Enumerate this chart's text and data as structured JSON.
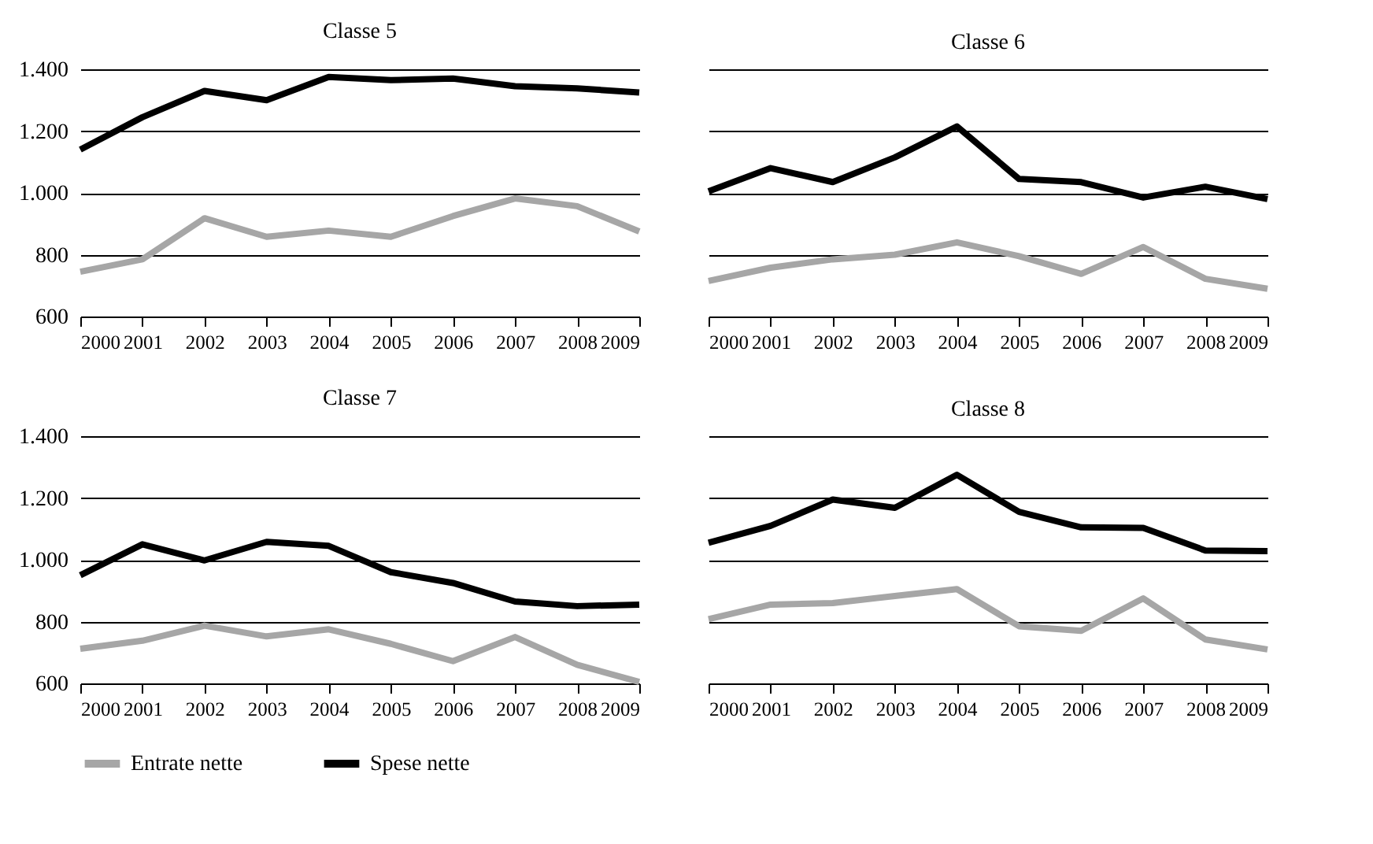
{
  "chart_data": [
    {
      "type": "line",
      "title": "Classe 5",
      "categories": [
        "2000",
        "2001",
        "2002",
        "2003",
        "2004",
        "2005",
        "2006",
        "2007",
        "2008",
        "2009"
      ],
      "ylim": [
        600,
        1400
      ],
      "yticks": [
        {
          "value": 600,
          "label": "600"
        },
        {
          "value": 800,
          "label": "800"
        },
        {
          "value": 1000,
          "label": "1.000"
        },
        {
          "value": 1200,
          "label": "1.200"
        },
        {
          "value": 1400,
          "label": "1.400"
        }
      ],
      "grid": "y",
      "legend": "bottom",
      "series": [
        {
          "name": "Entrate nette",
          "color": "#a6a6a6",
          "values": [
            745,
            785,
            918,
            858,
            878,
            858,
            925,
            982,
            957,
            875
          ]
        },
        {
          "name": "Spese nette",
          "color": "#000000",
          "values": [
            1140,
            1245,
            1330,
            1300,
            1375,
            1365,
            1370,
            1345,
            1338,
            1325
          ]
        }
      ]
    },
    {
      "type": "line",
      "title": "Classe 6",
      "categories": [
        "2000",
        "2001",
        "2002",
        "2003",
        "2004",
        "2005",
        "2006",
        "2007",
        "2008",
        "2009"
      ],
      "ylim": [
        600,
        1400
      ],
      "yticks": [
        600,
        800,
        1000,
        1200,
        1400
      ],
      "tick_labels": "x",
      "grid": "y",
      "legend": "bottom",
      "series": [
        {
          "name": "Entrate nette",
          "color": "#a6a6a6",
          "values": [
            715,
            758,
            785,
            800,
            840,
            795,
            738,
            825,
            722,
            690
          ]
        },
        {
          "name": "Spese nette",
          "color": "#000000",
          "values": [
            1005,
            1080,
            1035,
            1115,
            1215,
            1045,
            1035,
            985,
            1020,
            980
          ]
        }
      ]
    },
    {
      "type": "line",
      "title": "Classe 7",
      "categories": [
        "2000",
        "2001",
        "2002",
        "2003",
        "2004",
        "2005",
        "2006",
        "2007",
        "2008",
        "2009"
      ],
      "ylim": [
        600,
        1400
      ],
      "yticks": [
        {
          "value": 600,
          "label": "600"
        },
        {
          "value": 800,
          "label": "800"
        },
        {
          "value": 1000,
          "label": "1.000"
        },
        {
          "value": 1200,
          "label": "1.200"
        },
        {
          "value": 1400,
          "label": "1.400"
        }
      ],
      "grid": "y",
      "legend": "bottom",
      "series": [
        {
          "name": "Entrate nette",
          "color": "#a6a6a6",
          "values": [
            712,
            738,
            787,
            752,
            775,
            728,
            672,
            750,
            660,
            605
          ]
        },
        {
          "name": "Spese nette",
          "color": "#000000",
          "values": [
            950,
            1050,
            998,
            1058,
            1045,
            960,
            925,
            865,
            850,
            855
          ]
        }
      ]
    },
    {
      "type": "line",
      "title": "Classe 8",
      "categories": [
        "2000",
        "2001",
        "2002",
        "2003",
        "2004",
        "2005",
        "2006",
        "2007",
        "2008",
        "2009"
      ],
      "ylim": [
        600,
        1400
      ],
      "yticks": [
        600,
        800,
        1000,
        1200,
        1400
      ],
      "tick_labels": "x",
      "grid": "y",
      "legend": "bottom",
      "series": [
        {
          "name": "Entrate nette",
          "color": "#a6a6a6",
          "values": [
            808,
            855,
            860,
            883,
            905,
            785,
            770,
            875,
            742,
            710
          ]
        },
        {
          "name": "Spese nette",
          "color": "#000000",
          "values": [
            1055,
            1110,
            1195,
            1168,
            1275,
            1155,
            1105,
            1103,
            1030,
            1028
          ]
        }
      ]
    }
  ]
}
